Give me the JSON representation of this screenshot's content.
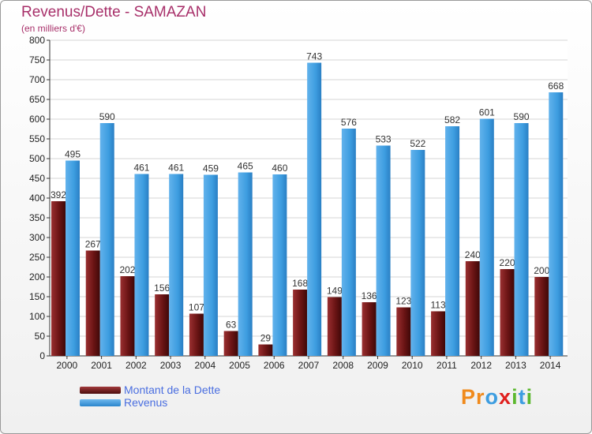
{
  "title": "Revenus/Dette - SAMAZAN",
  "subtitle": "(en milliers d'€)",
  "logo": {
    "letters": [
      "P",
      "r",
      "o",
      "x",
      "i",
      "t",
      "i"
    ]
  },
  "colors": {
    "title": "#a8306a",
    "debt": "#7a1e1e",
    "revenue": "#3d9de0",
    "legend_text": "#4a6ee0"
  },
  "chart_data": {
    "type": "bar",
    "title": "Revenus/Dette - SAMAZAN",
    "subtitle": "(en milliers d'€)",
    "xlabel": "",
    "ylabel": "",
    "ylim": [
      0,
      800
    ],
    "yticks": [
      0,
      50,
      100,
      150,
      200,
      250,
      300,
      350,
      400,
      450,
      500,
      550,
      600,
      650,
      700,
      750,
      800
    ],
    "grid": true,
    "legend_position": "bottom-left",
    "categories": [
      "2000",
      "2001",
      "2002",
      "2003",
      "2004",
      "2005",
      "2006",
      "2007",
      "2008",
      "2009",
      "2010",
      "2011",
      "2012",
      "2013",
      "2014"
    ],
    "series": [
      {
        "name": "Montant de la Dette",
        "color": "#7a1e1e",
        "values": [
          392,
          267,
          202,
          156,
          107,
          63,
          29,
          168,
          149,
          136,
          123,
          113,
          240,
          220,
          200
        ]
      },
      {
        "name": "Revenus",
        "color": "#3d9de0",
        "values": [
          495,
          590,
          461,
          461,
          459,
          465,
          460,
          743,
          576,
          533,
          522,
          582,
          601,
          590,
          668
        ]
      }
    ]
  }
}
